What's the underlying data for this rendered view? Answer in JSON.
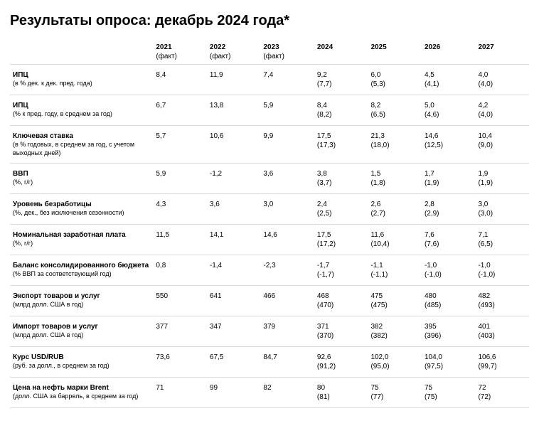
{
  "title": "Результаты опроса: декабрь 2024 года*",
  "columns": [
    {
      "year": "2021",
      "note": "(факт)"
    },
    {
      "year": "2022",
      "note": "(факт)"
    },
    {
      "year": "2023",
      "note": "(факт)"
    },
    {
      "year": "2024",
      "note": ""
    },
    {
      "year": "2025",
      "note": ""
    },
    {
      "year": "2026",
      "note": ""
    },
    {
      "year": "2027",
      "note": ""
    }
  ],
  "rows": [
    {
      "label": "ИПЦ",
      "sub": "(в % дек. к дек. пред. года)",
      "cells": [
        {
          "v": "8,4",
          "s": ""
        },
        {
          "v": "11,9",
          "s": ""
        },
        {
          "v": "7,4",
          "s": ""
        },
        {
          "v": "9,2",
          "s": "(7,7)"
        },
        {
          "v": "6,0",
          "s": "(5,3)"
        },
        {
          "v": "4,5",
          "s": "(4,1)"
        },
        {
          "v": "4,0",
          "s": "(4,0)"
        }
      ]
    },
    {
      "label": "ИПЦ",
      "sub": "(% к пред. году, в среднем за год)",
      "cells": [
        {
          "v": "6,7",
          "s": ""
        },
        {
          "v": "13,8",
          "s": ""
        },
        {
          "v": "5,9",
          "s": ""
        },
        {
          "v": "8,4",
          "s": "(8,2)"
        },
        {
          "v": "8,2",
          "s": "(6,5)"
        },
        {
          "v": "5,0",
          "s": "(4,6)"
        },
        {
          "v": "4,2",
          "s": "(4,0)"
        }
      ]
    },
    {
      "label": "Ключевая ставка",
      "sub": "(в % годовых, в среднем за год, с учетом выходных дней)",
      "cells": [
        {
          "v": "5,7",
          "s": ""
        },
        {
          "v": "10,6",
          "s": ""
        },
        {
          "v": "9,9",
          "s": ""
        },
        {
          "v": "17,5",
          "s": "(17,3)"
        },
        {
          "v": "21,3",
          "s": "(18,0)"
        },
        {
          "v": "14,6",
          "s": "(12,5)"
        },
        {
          "v": "10,4",
          "s": "(9,0)"
        }
      ]
    },
    {
      "label": "ВВП",
      "sub": "(%, г/г)",
      "cells": [
        {
          "v": "5,9",
          "s": ""
        },
        {
          "v": "-1,2",
          "s": ""
        },
        {
          "v": "3,6",
          "s": ""
        },
        {
          "v": "3,8",
          "s": "(3,7)"
        },
        {
          "v": "1,5",
          "s": "(1,8)"
        },
        {
          "v": "1,7",
          "s": "(1,9)"
        },
        {
          "v": "1,9",
          "s": "(1,9)"
        }
      ]
    },
    {
      "label": "Уровень безработицы",
      "sub": "(%, дек., без исключения сезонности)",
      "cells": [
        {
          "v": "4,3",
          "s": ""
        },
        {
          "v": "3,6",
          "s": ""
        },
        {
          "v": "3,0",
          "s": ""
        },
        {
          "v": "2,4",
          "s": "(2,5)"
        },
        {
          "v": "2,6",
          "s": "(2,7)"
        },
        {
          "v": "2,8",
          "s": "(2,9)"
        },
        {
          "v": "3,0",
          "s": "(3,0)"
        }
      ]
    },
    {
      "label": "Номинальная заработная плата",
      "sub": "(%, г/г)",
      "cells": [
        {
          "v": "11,5",
          "s": ""
        },
        {
          "v": "14,1",
          "s": ""
        },
        {
          "v": "14,6",
          "s": ""
        },
        {
          "v": "17,5",
          "s": "(17,2)"
        },
        {
          "v": "11,6",
          "s": "(10,4)"
        },
        {
          "v": "7,6",
          "s": "(7,6)"
        },
        {
          "v": "7,1",
          "s": "(6,5)"
        }
      ]
    },
    {
      "label": "Баланс консолидированного бюджета",
      "sub": "(% ВВП за соответствующий год)",
      "cells": [
        {
          "v": "0,8",
          "s": ""
        },
        {
          "v": "-1,4",
          "s": ""
        },
        {
          "v": "-2,3",
          "s": ""
        },
        {
          "v": "-1,7",
          "s": "(-1,7)"
        },
        {
          "v": "-1,1",
          "s": "(-1,1)"
        },
        {
          "v": "-1,0",
          "s": "(-1,0)"
        },
        {
          "v": "-1,0",
          "s": "(-1,0)"
        }
      ]
    },
    {
      "label": "Экспорт товаров и услуг",
      "sub": "(млрд долл. США в год)",
      "cells": [
        {
          "v": "550",
          "s": ""
        },
        {
          "v": "641",
          "s": ""
        },
        {
          "v": "466",
          "s": ""
        },
        {
          "v": "468",
          "s": "(470)"
        },
        {
          "v": "475",
          "s": "(475)"
        },
        {
          "v": "480",
          "s": "(485)"
        },
        {
          "v": "482",
          "s": "(493)"
        }
      ]
    },
    {
      "label": "Импорт товаров и услуг",
      "sub": "(млрд долл. США в год)",
      "cells": [
        {
          "v": "377",
          "s": ""
        },
        {
          "v": "347",
          "s": ""
        },
        {
          "v": "379",
          "s": ""
        },
        {
          "v": "371",
          "s": "(370)"
        },
        {
          "v": "382",
          "s": "(382)"
        },
        {
          "v": "395",
          "s": "(396)"
        },
        {
          "v": "401",
          "s": "(403)"
        }
      ]
    },
    {
      "label": "Курс USD/RUB",
      "sub": "(руб. за долл., в среднем за год)",
      "cells": [
        {
          "v": "73,6",
          "s": ""
        },
        {
          "v": "67,5",
          "s": ""
        },
        {
          "v": "84,7",
          "s": ""
        },
        {
          "v": "92,6",
          "s": "(91,2)"
        },
        {
          "v": "102,0",
          "s": "(95,0)"
        },
        {
          "v": "104,0",
          "s": "(97,5)"
        },
        {
          "v": "106,6",
          "s": "(99,7)"
        }
      ]
    },
    {
      "label": "Цена на нефть марки Brent",
      "sub": "(долл. США за баррель, в среднем за год)",
      "cells": [
        {
          "v": "71",
          "s": ""
        },
        {
          "v": "99",
          "s": ""
        },
        {
          "v": "82",
          "s": ""
        },
        {
          "v": "80",
          "s": "(81)"
        },
        {
          "v": "75",
          "s": "(77)"
        },
        {
          "v": "75",
          "s": "(75)"
        },
        {
          "v": "72",
          "s": "(72)"
        }
      ]
    }
  ]
}
